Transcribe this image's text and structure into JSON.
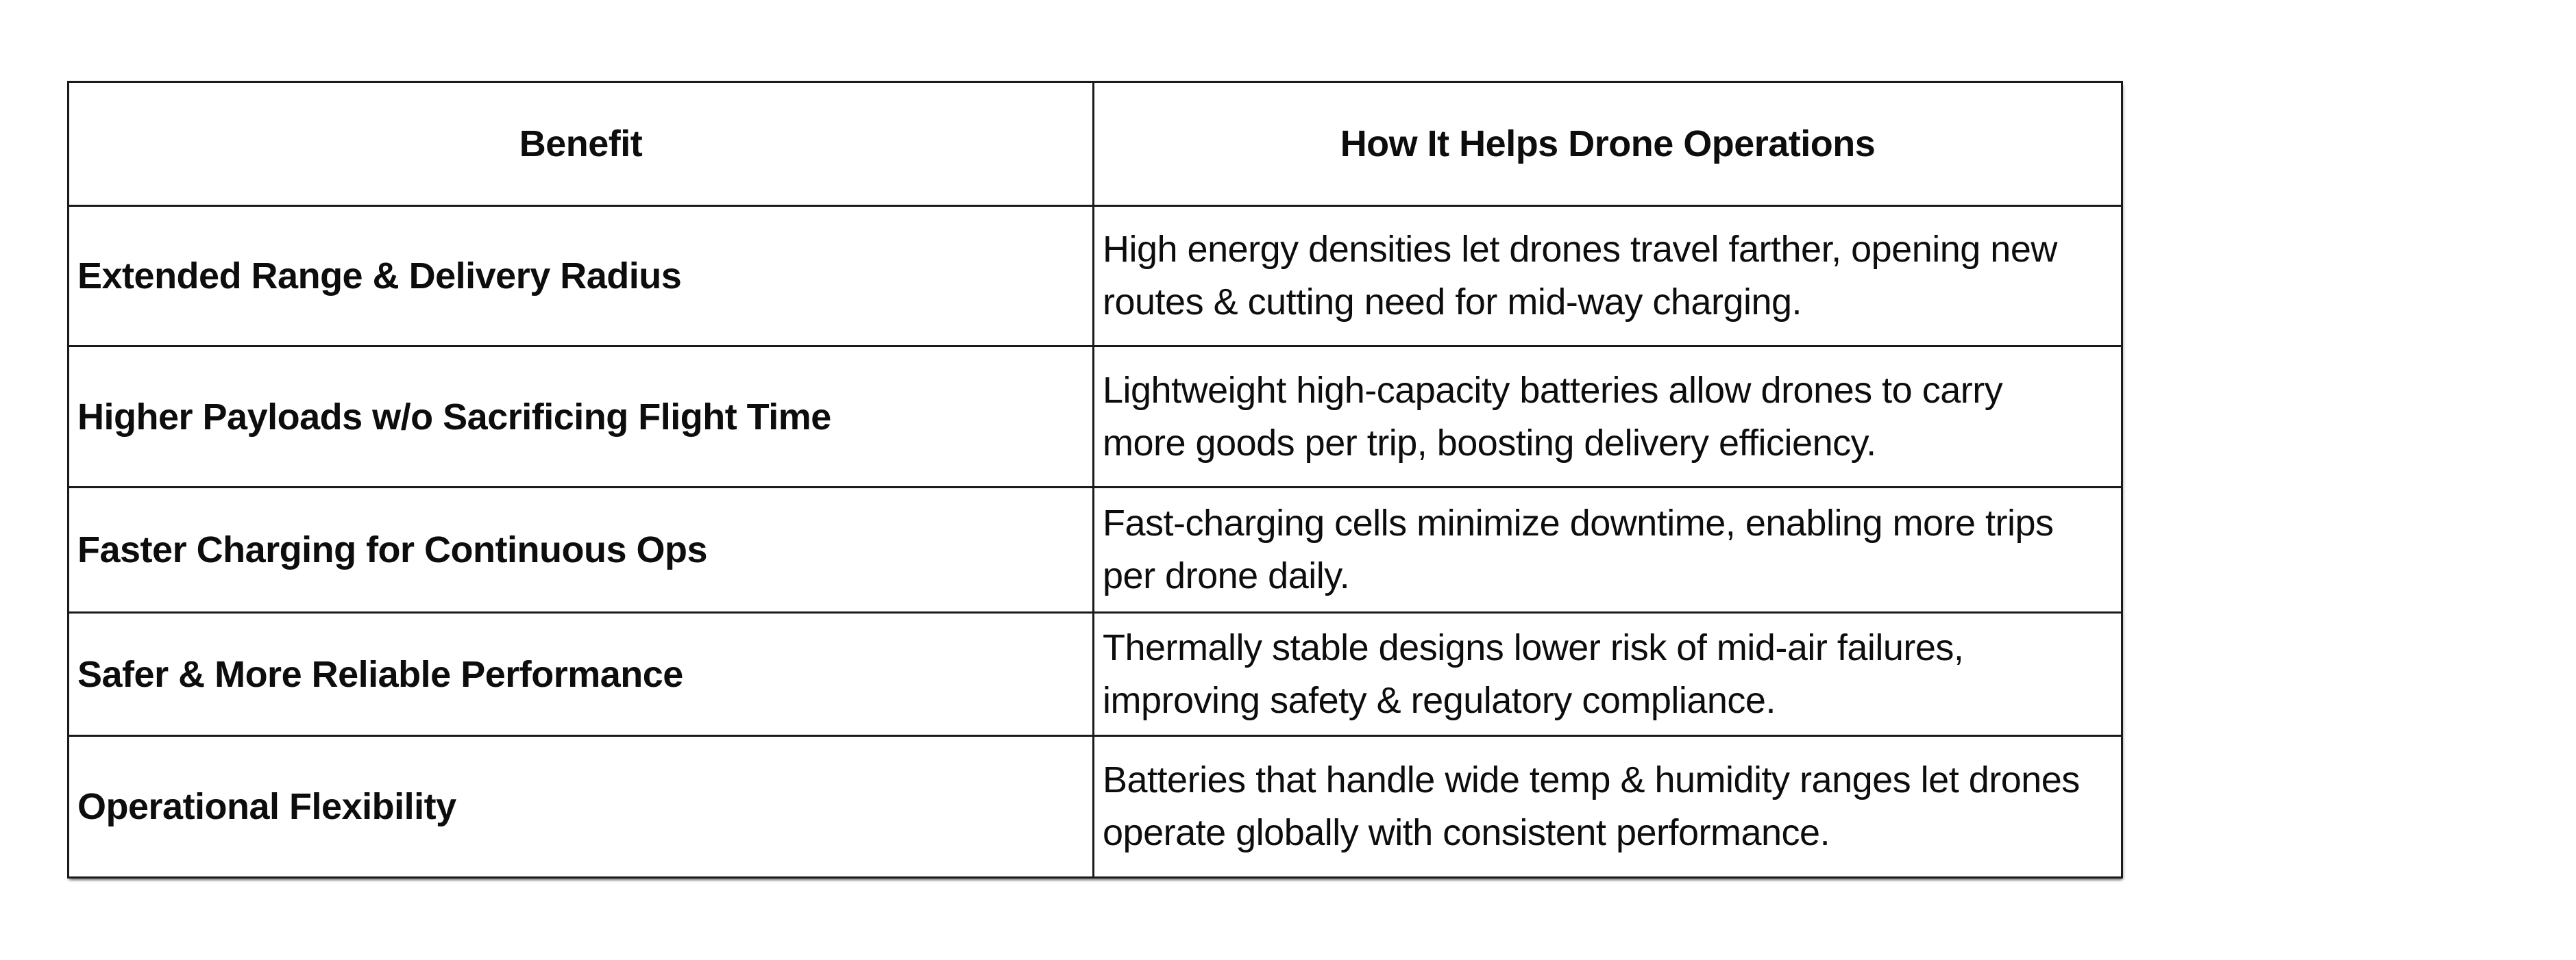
{
  "page": {
    "background_color": "#ffffff",
    "text_color": "#000000",
    "border_color": "#1a1a1a"
  },
  "table": {
    "columns": [
      {
        "header": "Benefit"
      },
      {
        "header": "How It Helps Drone Operations"
      }
    ],
    "rows": [
      {
        "benefit": "Extended Range & Delivery Radius",
        "how_it_helps": "High energy densities let drones travel farther, opening new routes & cutting need for mid-way charging."
      },
      {
        "benefit": "Higher Payloads w/o Sacrificing Flight Time",
        "how_it_helps": "Lightweight high-capacity batteries allow drones to carry more goods per trip, boosting delivery efficiency."
      },
      {
        "benefit": "Faster Charging for Continuous Ops",
        "how_it_helps": "Fast-charging cells minimize downtime, enabling more trips per drone daily."
      },
      {
        "benefit": "Safer & More Reliable Performance",
        "how_it_helps": "Thermally stable designs lower risk of mid-air failures, improving safety & regulatory compliance."
      },
      {
        "benefit": "Operational Flexibility",
        "how_it_helps": "Batteries that handle wide temp & humidity ranges let drones operate globally with consistent performance."
      }
    ]
  }
}
